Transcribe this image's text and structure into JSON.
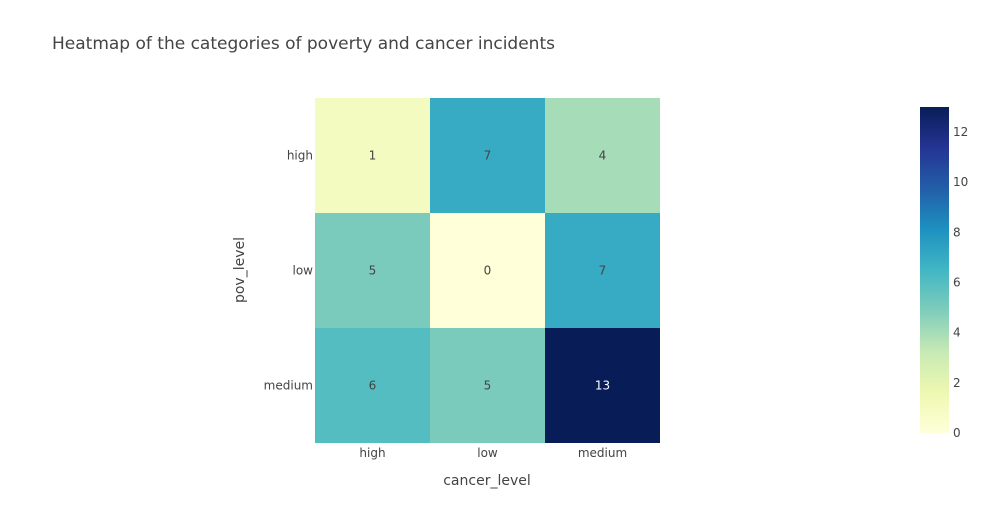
{
  "chart_data": {
    "type": "heatmap",
    "title": "Heatmap of the categories of poverty and cancer incidents",
    "xlabel": "cancer_level",
    "ylabel": "pov_level",
    "x": [
      "high",
      "low",
      "medium"
    ],
    "y": [
      "high",
      "low",
      "medium"
    ],
    "z": [
      [
        1,
        7,
        4
      ],
      [
        5,
        0,
        7
      ],
      [
        6,
        5,
        13
      ]
    ],
    "zlim": [
      0,
      13
    ],
    "colorbar": {
      "ticks": [
        0,
        2,
        4,
        6,
        8,
        10,
        12
      ],
      "colorscale": [
        [
          0.0,
          "#ffffd9"
        ],
        [
          0.125,
          "#edf8b1"
        ],
        [
          0.25,
          "#c7e9b4"
        ],
        [
          0.375,
          "#7fcdbb"
        ],
        [
          0.5,
          "#41b6c4"
        ],
        [
          0.625,
          "#1d91c0"
        ],
        [
          0.75,
          "#225ea8"
        ],
        [
          0.875,
          "#253494"
        ],
        [
          1.0,
          "#081d58"
        ]
      ]
    },
    "colors": {
      "text_dark": "#444444",
      "text_light": "#ffffff",
      "axis_text": "#444444",
      "title_text": "#444444"
    }
  }
}
